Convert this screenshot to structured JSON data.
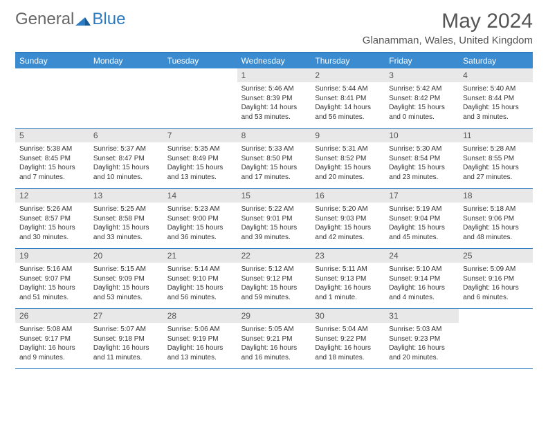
{
  "brand": {
    "part1": "General",
    "part2": "Blue"
  },
  "title": "May 2024",
  "location": "Glanamman, Wales, United Kingdom",
  "colors": {
    "accent": "#3a8bd0",
    "border": "#2d7bc0",
    "daybg": "#e8e8e8"
  },
  "day_names": [
    "Sunday",
    "Monday",
    "Tuesday",
    "Wednesday",
    "Thursday",
    "Friday",
    "Saturday"
  ],
  "weeks": [
    [
      {
        "n": "",
        "sr": "",
        "ss": "",
        "dl": ""
      },
      {
        "n": "",
        "sr": "",
        "ss": "",
        "dl": ""
      },
      {
        "n": "",
        "sr": "",
        "ss": "",
        "dl": ""
      },
      {
        "n": "1",
        "sr": "Sunrise: 5:46 AM",
        "ss": "Sunset: 8:39 PM",
        "dl": "Daylight: 14 hours and 53 minutes."
      },
      {
        "n": "2",
        "sr": "Sunrise: 5:44 AM",
        "ss": "Sunset: 8:41 PM",
        "dl": "Daylight: 14 hours and 56 minutes."
      },
      {
        "n": "3",
        "sr": "Sunrise: 5:42 AM",
        "ss": "Sunset: 8:42 PM",
        "dl": "Daylight: 15 hours and 0 minutes."
      },
      {
        "n": "4",
        "sr": "Sunrise: 5:40 AM",
        "ss": "Sunset: 8:44 PM",
        "dl": "Daylight: 15 hours and 3 minutes."
      }
    ],
    [
      {
        "n": "5",
        "sr": "Sunrise: 5:38 AM",
        "ss": "Sunset: 8:45 PM",
        "dl": "Daylight: 15 hours and 7 minutes."
      },
      {
        "n": "6",
        "sr": "Sunrise: 5:37 AM",
        "ss": "Sunset: 8:47 PM",
        "dl": "Daylight: 15 hours and 10 minutes."
      },
      {
        "n": "7",
        "sr": "Sunrise: 5:35 AM",
        "ss": "Sunset: 8:49 PM",
        "dl": "Daylight: 15 hours and 13 minutes."
      },
      {
        "n": "8",
        "sr": "Sunrise: 5:33 AM",
        "ss": "Sunset: 8:50 PM",
        "dl": "Daylight: 15 hours and 17 minutes."
      },
      {
        "n": "9",
        "sr": "Sunrise: 5:31 AM",
        "ss": "Sunset: 8:52 PM",
        "dl": "Daylight: 15 hours and 20 minutes."
      },
      {
        "n": "10",
        "sr": "Sunrise: 5:30 AM",
        "ss": "Sunset: 8:54 PM",
        "dl": "Daylight: 15 hours and 23 minutes."
      },
      {
        "n": "11",
        "sr": "Sunrise: 5:28 AM",
        "ss": "Sunset: 8:55 PM",
        "dl": "Daylight: 15 hours and 27 minutes."
      }
    ],
    [
      {
        "n": "12",
        "sr": "Sunrise: 5:26 AM",
        "ss": "Sunset: 8:57 PM",
        "dl": "Daylight: 15 hours and 30 minutes."
      },
      {
        "n": "13",
        "sr": "Sunrise: 5:25 AM",
        "ss": "Sunset: 8:58 PM",
        "dl": "Daylight: 15 hours and 33 minutes."
      },
      {
        "n": "14",
        "sr": "Sunrise: 5:23 AM",
        "ss": "Sunset: 9:00 PM",
        "dl": "Daylight: 15 hours and 36 minutes."
      },
      {
        "n": "15",
        "sr": "Sunrise: 5:22 AM",
        "ss": "Sunset: 9:01 PM",
        "dl": "Daylight: 15 hours and 39 minutes."
      },
      {
        "n": "16",
        "sr": "Sunrise: 5:20 AM",
        "ss": "Sunset: 9:03 PM",
        "dl": "Daylight: 15 hours and 42 minutes."
      },
      {
        "n": "17",
        "sr": "Sunrise: 5:19 AM",
        "ss": "Sunset: 9:04 PM",
        "dl": "Daylight: 15 hours and 45 minutes."
      },
      {
        "n": "18",
        "sr": "Sunrise: 5:18 AM",
        "ss": "Sunset: 9:06 PM",
        "dl": "Daylight: 15 hours and 48 minutes."
      }
    ],
    [
      {
        "n": "19",
        "sr": "Sunrise: 5:16 AM",
        "ss": "Sunset: 9:07 PM",
        "dl": "Daylight: 15 hours and 51 minutes."
      },
      {
        "n": "20",
        "sr": "Sunrise: 5:15 AM",
        "ss": "Sunset: 9:09 PM",
        "dl": "Daylight: 15 hours and 53 minutes."
      },
      {
        "n": "21",
        "sr": "Sunrise: 5:14 AM",
        "ss": "Sunset: 9:10 PM",
        "dl": "Daylight: 15 hours and 56 minutes."
      },
      {
        "n": "22",
        "sr": "Sunrise: 5:12 AM",
        "ss": "Sunset: 9:12 PM",
        "dl": "Daylight: 15 hours and 59 minutes."
      },
      {
        "n": "23",
        "sr": "Sunrise: 5:11 AM",
        "ss": "Sunset: 9:13 PM",
        "dl": "Daylight: 16 hours and 1 minute."
      },
      {
        "n": "24",
        "sr": "Sunrise: 5:10 AM",
        "ss": "Sunset: 9:14 PM",
        "dl": "Daylight: 16 hours and 4 minutes."
      },
      {
        "n": "25",
        "sr": "Sunrise: 5:09 AM",
        "ss": "Sunset: 9:16 PM",
        "dl": "Daylight: 16 hours and 6 minutes."
      }
    ],
    [
      {
        "n": "26",
        "sr": "Sunrise: 5:08 AM",
        "ss": "Sunset: 9:17 PM",
        "dl": "Daylight: 16 hours and 9 minutes."
      },
      {
        "n": "27",
        "sr": "Sunrise: 5:07 AM",
        "ss": "Sunset: 9:18 PM",
        "dl": "Daylight: 16 hours and 11 minutes."
      },
      {
        "n": "28",
        "sr": "Sunrise: 5:06 AM",
        "ss": "Sunset: 9:19 PM",
        "dl": "Daylight: 16 hours and 13 minutes."
      },
      {
        "n": "29",
        "sr": "Sunrise: 5:05 AM",
        "ss": "Sunset: 9:21 PM",
        "dl": "Daylight: 16 hours and 16 minutes."
      },
      {
        "n": "30",
        "sr": "Sunrise: 5:04 AM",
        "ss": "Sunset: 9:22 PM",
        "dl": "Daylight: 16 hours and 18 minutes."
      },
      {
        "n": "31",
        "sr": "Sunrise: 5:03 AM",
        "ss": "Sunset: 9:23 PM",
        "dl": "Daylight: 16 hours and 20 minutes."
      },
      {
        "n": "",
        "sr": "",
        "ss": "",
        "dl": ""
      }
    ]
  ]
}
